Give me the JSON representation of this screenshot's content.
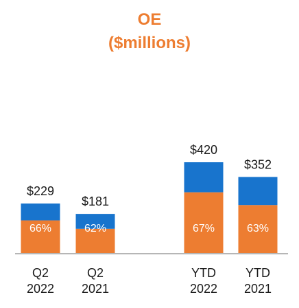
{
  "chart_data": {
    "type": "bar",
    "title": "OE",
    "subtitle": "($millions)",
    "categories": [
      [
        "Q2",
        "2022"
      ],
      [
        "Q2",
        "2021"
      ],
      [
        "YTD",
        "2022"
      ],
      [
        "YTD",
        "2021"
      ]
    ],
    "totals": [
      229,
      181,
      420,
      352
    ],
    "value_labels": [
      "$229",
      "$181",
      "$420",
      "$352"
    ],
    "percent_labels": [
      "66%",
      "62%",
      "67%",
      "63%"
    ],
    "series": [
      {
        "values": [
          151,
          112,
          281,
          222
        ]
      },
      {
        "values": [
          78,
          69,
          139,
          130
        ]
      }
    ],
    "ylim": [
      0,
      420
    ],
    "grid": false,
    "legend": "none"
  },
  "colors": {
    "title": "#ED7D31",
    "bottom_segment": "#ED7D31",
    "top_segment": "#1874CD",
    "axis": "#9E9E9E",
    "text": "#1a1a1a"
  }
}
